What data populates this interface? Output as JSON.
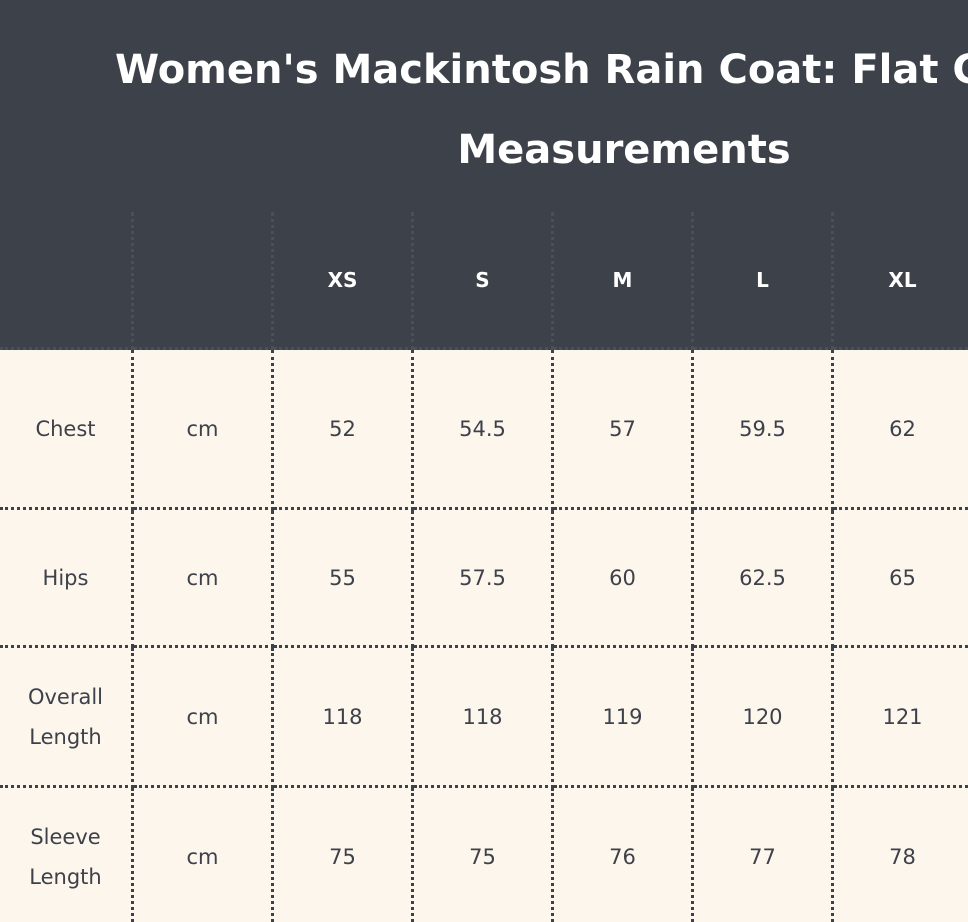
{
  "title_lines": [
    "Women's Mackintosh Rain Coat: Flat G",
    "Measurements"
  ],
  "table": {
    "sizes": [
      "XS",
      "S",
      "M",
      "L",
      "XL"
    ],
    "rows": [
      {
        "label": "Chest",
        "unit": "cm",
        "values": [
          52,
          54.5,
          57,
          59.5,
          62
        ]
      },
      {
        "label": "Hips",
        "unit": "cm",
        "values": [
          55,
          57.5,
          60,
          62.5,
          65
        ]
      },
      {
        "label": "Overall Length",
        "unit": "cm",
        "values": [
          118,
          118,
          119,
          120,
          121
        ]
      },
      {
        "label": "Sleeve Length",
        "unit": "cm",
        "values": [
          75,
          75,
          76,
          77,
          78
        ]
      }
    ]
  }
}
